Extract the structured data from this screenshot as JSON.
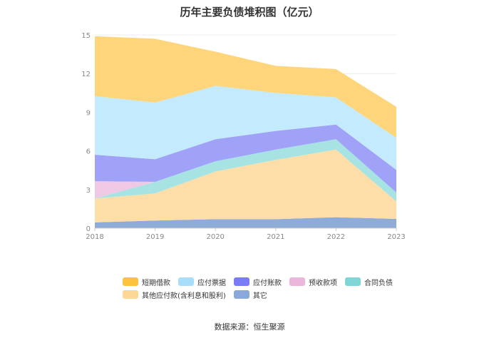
{
  "chart_data": {
    "type": "area",
    "title": "历年主要负债堆积图（亿元）",
    "x": [
      "2018",
      "2019",
      "2020",
      "2021",
      "2022",
      "2023"
    ],
    "y_ticks": [
      "0",
      "3",
      "6",
      "9",
      "12",
      "15"
    ],
    "ylim": [
      0,
      15
    ],
    "stacked": true,
    "grid": true,
    "legend_position": "bottom",
    "series": [
      {
        "name": "其它",
        "color": "#8fabd8",
        "values": [
          0.45,
          0.6,
          0.7,
          0.7,
          0.85,
          0.72
        ]
      },
      {
        "name": "其他应付款(含利息和股利)",
        "color": "#fedea8",
        "values": [
          1.85,
          2.1,
          3.7,
          4.6,
          5.25,
          1.35
        ]
      },
      {
        "name": "合同负债",
        "color": "#a8e3e3",
        "values": [
          0.0,
          0.9,
          0.8,
          0.8,
          0.8,
          0.7
        ]
      },
      {
        "name": "预收款项",
        "color": "#efc8e4",
        "values": [
          1.35,
          0.0,
          0.0,
          0.0,
          0.0,
          0.0
        ]
      },
      {
        "name": "应付账款",
        "color": "#a0a2f8",
        "values": [
          2.05,
          1.75,
          1.7,
          1.45,
          1.15,
          1.75
        ]
      },
      {
        "name": "应付票据",
        "color": "#c4eafd",
        "values": [
          4.55,
          4.4,
          4.15,
          2.95,
          2.1,
          2.5
        ]
      },
      {
        "name": "短期借款",
        "color": "#fed57a",
        "values": [
          4.65,
          4.95,
          2.65,
          2.1,
          2.2,
          2.4
        ]
      }
    ]
  },
  "legend": {
    "row1": [
      {
        "label": "短期借款",
        "color": "#fbc43c"
      },
      {
        "label": "应付票据",
        "color": "#a9defb"
      },
      {
        "label": "应付账款",
        "color": "#7a7cf5"
      },
      {
        "label": "预收款项",
        "color": "#ecb6dc"
      },
      {
        "label": "合同负债",
        "color": "#7fd6d6"
      }
    ],
    "row2": [
      {
        "label": "其他应付款(含利息和股利)",
        "color": "#fdd796"
      },
      {
        "label": "其它",
        "color": "#8aa8d9"
      }
    ]
  },
  "source": "数据来源：恒生聚源"
}
